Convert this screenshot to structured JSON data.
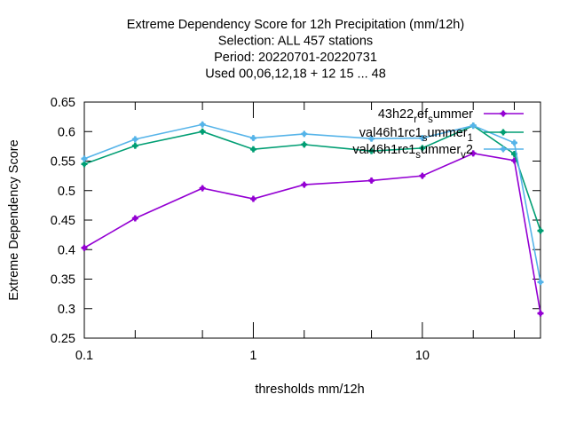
{
  "chart_data": {
    "type": "line",
    "title_lines": [
      "Extreme Dependency Score  for 12h Precipitation (mm/12h)",
      "Selection: ALL     457 stations",
      "Period: 20220701-20220731",
      "Used  00,06,12,18  + 12 15 ... 48"
    ],
    "xlabel": "thresholds mm/12h",
    "ylabel": "Extreme Dependency Score",
    "x_scale": "log",
    "xlim": [
      0.1,
      50
    ],
    "ylim": [
      0.25,
      0.65
    ],
    "x_ticks": [
      0.1,
      1,
      10
    ],
    "x_tick_labels": [
      "0.1",
      "1",
      "10"
    ],
    "x_minor_ticks": [
      0.2,
      0.5,
      2,
      5,
      20,
      35,
      50
    ],
    "y_ticks": [
      0.25,
      0.3,
      0.35,
      0.4,
      0.45,
      0.5,
      0.55,
      0.6,
      0.65
    ],
    "y_tick_labels": [
      "0.25",
      "0.3",
      "0.35",
      "0.4",
      "0.45",
      "0.5",
      "0.55",
      "0.6",
      "0.65"
    ],
    "legend_position": "top-right",
    "x": [
      0.1,
      0.2,
      0.5,
      1,
      2,
      5,
      10,
      20,
      35,
      50
    ],
    "series": [
      {
        "name": "43h22_ref_summer",
        "legend_base": "43h22",
        "legend_parts": [
          [
            "_",
            "r"
          ],
          [
            "",
            "ef"
          ],
          [
            "_",
            "s"
          ],
          [
            "",
            "ummer"
          ]
        ],
        "color": "#9400d3",
        "values": [
          0.403,
          0.453,
          0.504,
          0.486,
          0.51,
          0.517,
          0.525,
          0.563,
          0.551,
          0.292
        ]
      },
      {
        "name": "val46h1rc1_summer_1",
        "legend_base": "val46h1rc1",
        "legend_parts": [
          [
            "_",
            "s"
          ],
          [
            "",
            "ummer"
          ],
          [
            "_",
            "1"
          ]
        ],
        "color": "#009e73",
        "values": [
          0.545,
          0.576,
          0.6,
          0.57,
          0.578,
          0.567,
          0.572,
          0.61,
          0.562,
          0.432
        ]
      },
      {
        "name": "val46h1rc1_summer_v2",
        "legend_base": "val46h1rc1",
        "legend_parts": [
          [
            "_",
            "s"
          ],
          [
            "",
            "ummer"
          ],
          [
            "_",
            "v"
          ],
          [
            "",
            "2"
          ]
        ],
        "color": "#56b4e9",
        "values": [
          0.554,
          0.587,
          0.612,
          0.589,
          0.596,
          0.588,
          0.589,
          0.61,
          0.581,
          0.345
        ]
      }
    ]
  }
}
